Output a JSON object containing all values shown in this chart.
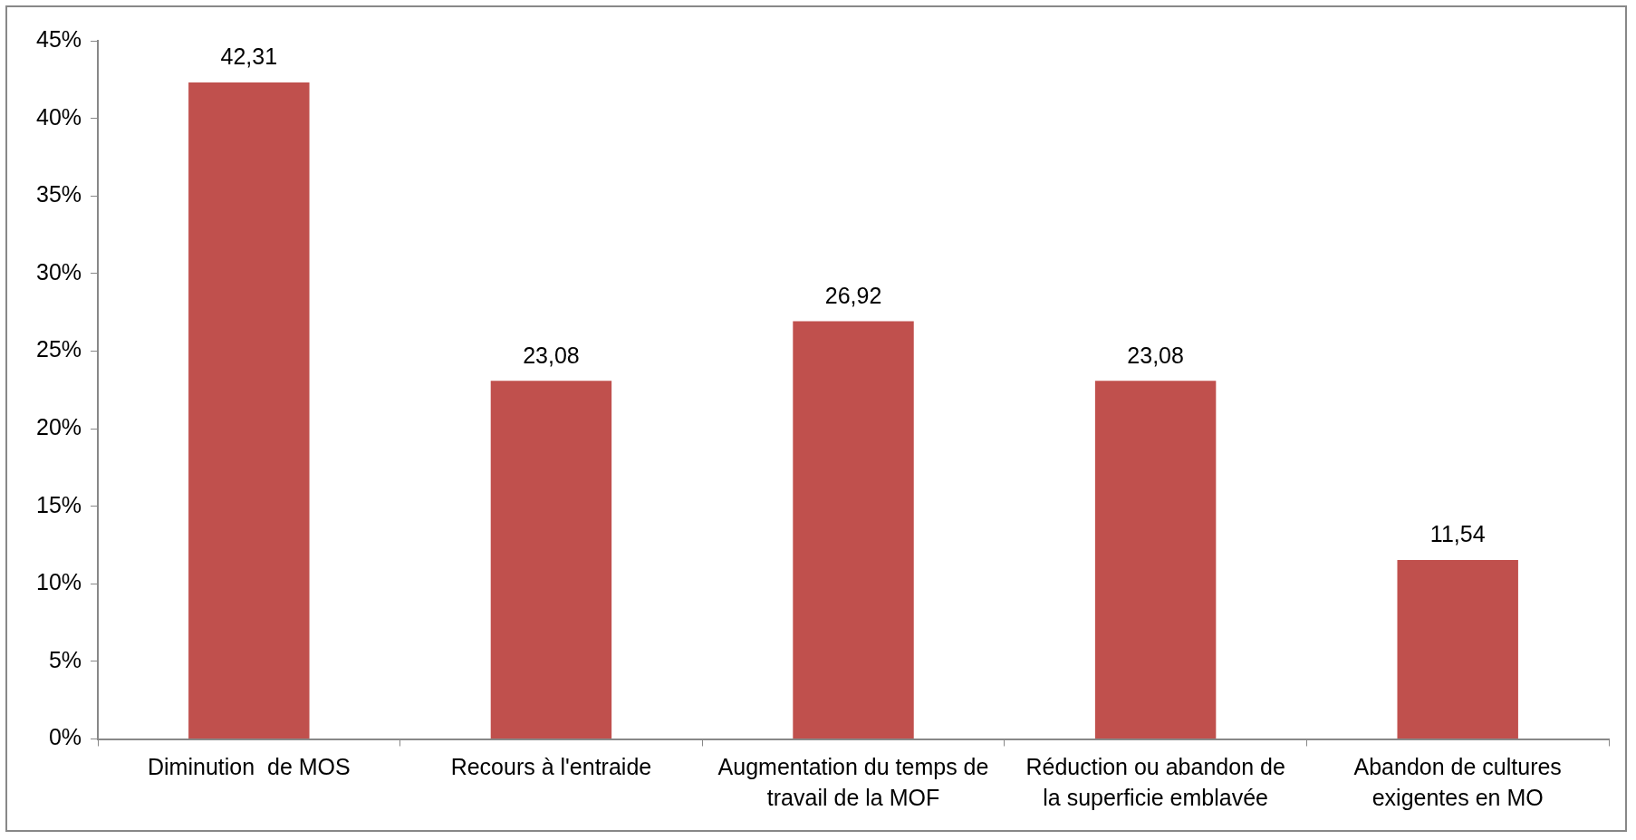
{
  "chart_data": {
    "type": "bar",
    "categories": [
      "Diminution  de MOS",
      "Recours à l'entraide",
      "Augmentation du temps de travail de la MOF",
      "Réduction ou abandon de la superficie emblavée",
      "Abandon de cultures exigentes en MO"
    ],
    "values": [
      42.31,
      23.08,
      26.92,
      23.08,
      11.54
    ],
    "value_labels": [
      "42,31",
      "23,08",
      "26,92",
      "23,08",
      "11,54"
    ],
    "color": "#c0504d",
    "ylim": [
      0,
      45
    ],
    "yticks": [
      {
        "value": 0,
        "label": "0%"
      },
      {
        "value": 5,
        "label": "5%"
      },
      {
        "value": 10,
        "label": "10%"
      },
      {
        "value": 15,
        "label": "15%"
      },
      {
        "value": 20,
        "label": "20%"
      },
      {
        "value": 25,
        "label": "25%"
      },
      {
        "value": 30,
        "label": "30%"
      },
      {
        "value": 35,
        "label": "35%"
      },
      {
        "value": 40,
        "label": "40%"
      },
      {
        "value": 45,
        "label": "45%"
      }
    ],
    "grid": false,
    "legend": false
  }
}
